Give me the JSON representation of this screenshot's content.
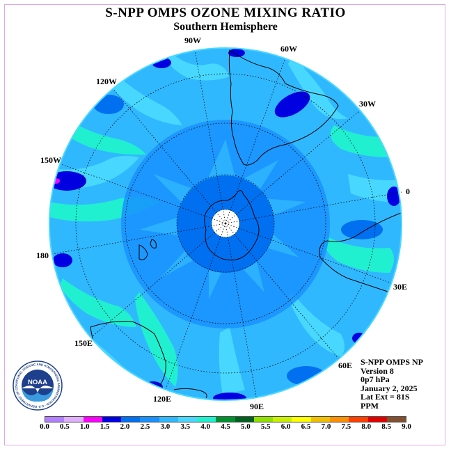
{
  "title": "S-NPP OMPS OZONE MIXING RATIO",
  "subtitle": "Southern Hemisphere",
  "longitude_labels": {
    "lon_0": "0",
    "lon_30w": "30W",
    "lon_60w": "60W",
    "lon_90w": "90W",
    "lon_120w": "120W",
    "lon_150w": "150W",
    "lon_180": "180",
    "lon_150e": "150E",
    "lon_120e": "120E",
    "lon_90e": "90E",
    "lon_60e": "60E",
    "lon_30e": "30E"
  },
  "info": {
    "instrument": "S-NPP OMPS NP",
    "version": "Version 8",
    "level": "0p7 hPa",
    "date": "January 2, 2025",
    "lat_ext": "Lat Ext = 81S",
    "units": "PPM"
  },
  "logo": {
    "text": "NOAA",
    "ring_text": "NATIONAL OCEANIC AND ATMOSPHERIC ADMINISTRATION · U.S. DEPARTMENT OF COMMERCE"
  },
  "colorbar": {
    "colors": [
      "#b080ff",
      "#e0b0ff",
      "#ff00ff",
      "#0000e0",
      "#0070f0",
      "#1890ff",
      "#30b8ff",
      "#48d8ff",
      "#20f0d0",
      "#009030",
      "#006020",
      "#90e000",
      "#c8f000",
      "#ffff00",
      "#f0c000",
      "#ff9000",
      "#ff4000",
      "#e00000",
      "#805030"
    ],
    "ticks": [
      "0.0",
      "0.5",
      "1.0",
      "1.5",
      "2.0",
      "2.5",
      "3.0",
      "3.5",
      "4.0",
      "4.5",
      "5.0",
      "5.5",
      "6.0",
      "6.5",
      "7.0",
      "7.5",
      "8.0",
      "8.5",
      "9.0"
    ]
  }
}
